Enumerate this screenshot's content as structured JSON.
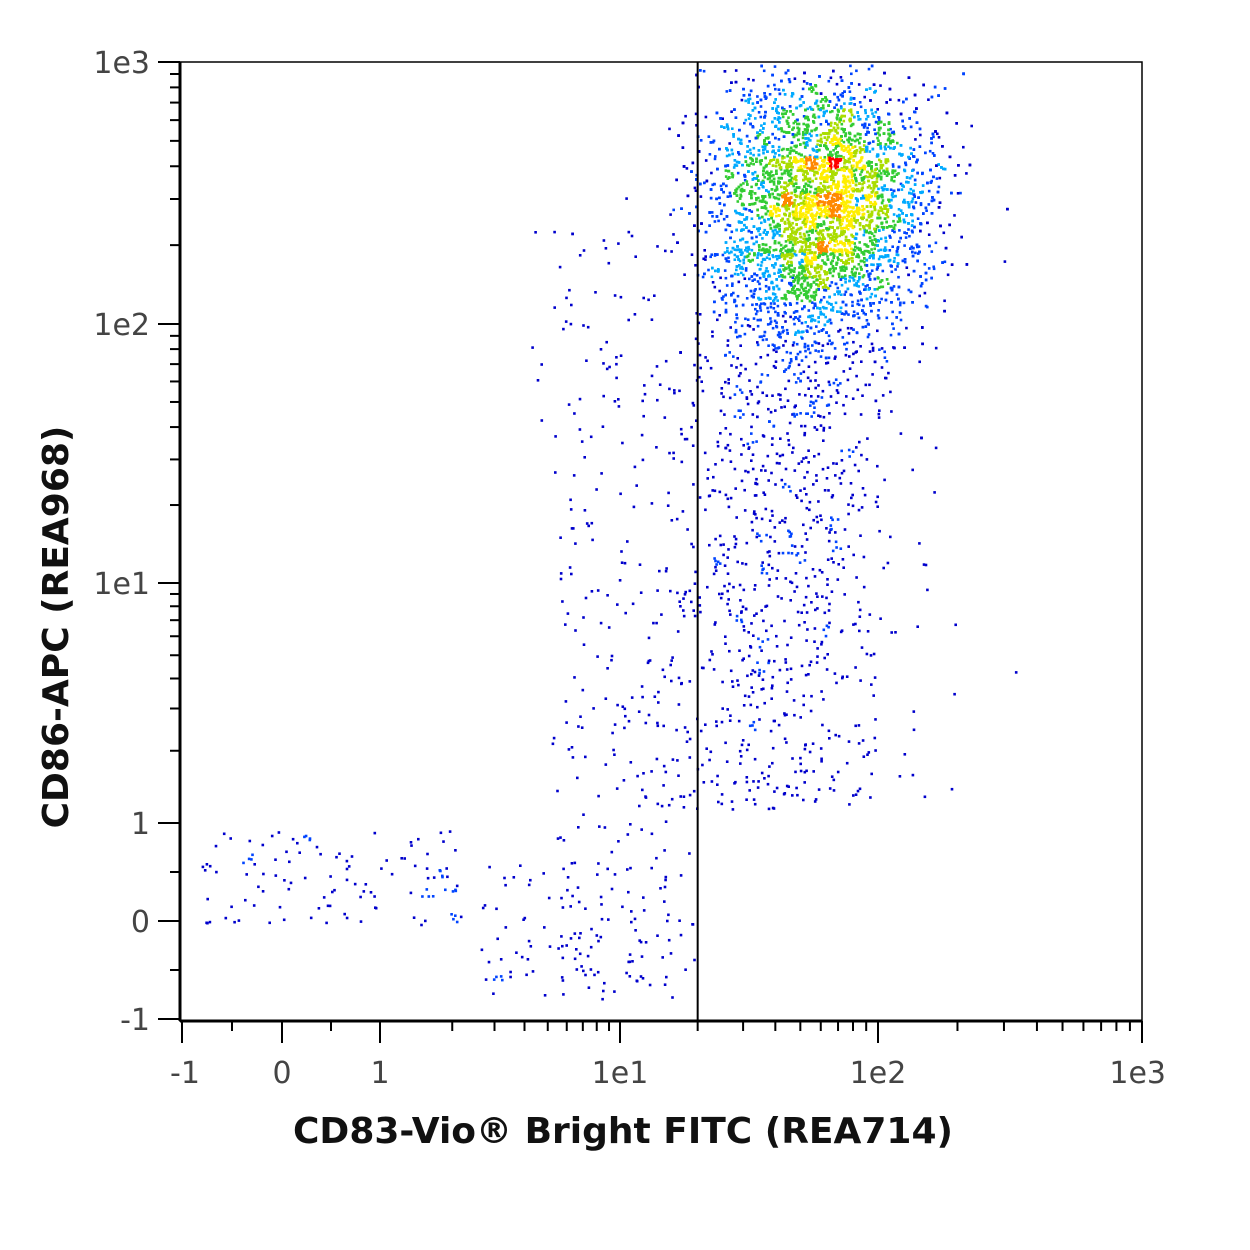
{
  "chart_data": {
    "type": "scatter",
    "subtype": "flow-cytometry-density-dot-plot",
    "title": "",
    "xlabel": "CD83-Vio® Bright FITC (REA714)",
    "ylabel": "CD86-APC (REA968)",
    "x_scale": "biexponential (linear near zero, log above ~1)",
    "y_scale": "biexponential (linear near zero, log above ~1)",
    "xlim": [
      -1,
      1000
    ],
    "ylim": [
      -1,
      1000
    ],
    "x_ticks": [
      {
        "value": -1,
        "label": "-1"
      },
      {
        "value": 0,
        "label": "0"
      },
      {
        "value": 1,
        "label": "1"
      },
      {
        "value": 10,
        "label": "1e1"
      },
      {
        "value": 100,
        "label": "1e2"
      },
      {
        "value": 1000,
        "label": "1e3"
      }
    ],
    "y_ticks": [
      {
        "value": -1,
        "label": "-1"
      },
      {
        "value": 0,
        "label": "0"
      },
      {
        "value": 1,
        "label": "1"
      },
      {
        "value": 10,
        "label": "1e1"
      },
      {
        "value": 100,
        "label": "1e2"
      },
      {
        "value": 1000,
        "label": "1e3"
      }
    ],
    "gate_line": {
      "orientation": "vertical",
      "x": 20
    },
    "populations": [
      {
        "description": "main dense population",
        "x_center": 60,
        "y_center": 330,
        "x_spread_log": 0.2,
        "y_spread_log": 0.2
      },
      {
        "description": "diffuse tail toward lower values",
        "x_range": [
          10,
          120
        ],
        "y_range": [
          0,
          120
        ]
      },
      {
        "description": "small cluster of low events",
        "x_range": [
          -1,
          3
        ],
        "y_range": [
          0,
          1
        ]
      }
    ],
    "density_colors": [
      "#0000cc",
      "#0044ff",
      "#00aaff",
      "#33cc33",
      "#aadd00",
      "#ffee00",
      "#ff8800",
      "#ff0000"
    ],
    "grid": false,
    "legend": "none"
  }
}
